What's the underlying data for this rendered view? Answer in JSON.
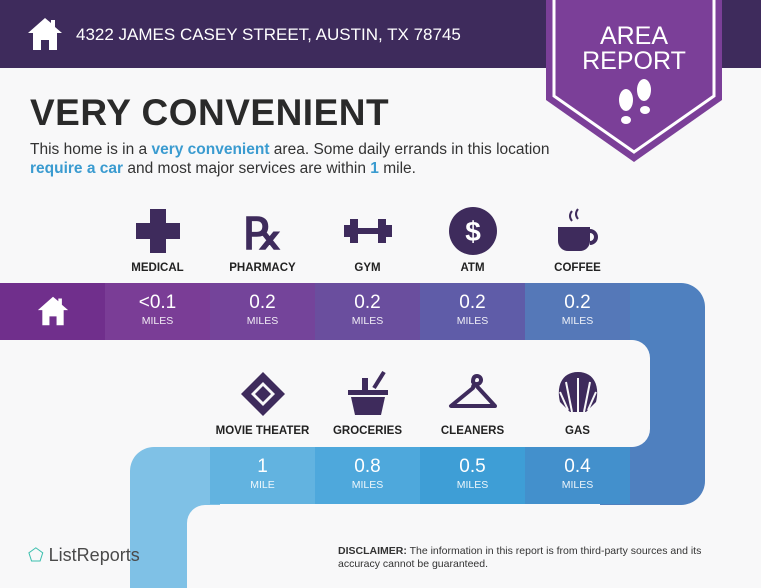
{
  "header": {
    "address": "4322 JAMES CASEY STREET, AUSTIN, TX 78745",
    "home_icon": "home-icon"
  },
  "badge": {
    "line1": "AREA",
    "line2": "REPORT",
    "icon": "footprints-icon"
  },
  "title": "VERY CONVENIENT",
  "description": {
    "p1": "This home is in a ",
    "h1": "very convenient",
    "p2": " area. Some daily errands in this location ",
    "h2": "require a car",
    "p3": " and most major services are within ",
    "h3": "1",
    "p4": " mile."
  },
  "row1": [
    {
      "label": "MEDICAL",
      "value": "<0.1",
      "unit": "MILES",
      "icon": "medical-cross-icon"
    },
    {
      "label": "PHARMACY",
      "value": "0.2",
      "unit": "MILES",
      "icon": "rx-icon"
    },
    {
      "label": "GYM",
      "value": "0.2",
      "unit": "MILES",
      "icon": "dumbbell-icon"
    },
    {
      "label": "ATM",
      "value": "0.2",
      "unit": "MILES",
      "icon": "dollar-icon"
    },
    {
      "label": "COFFEE",
      "value": "0.2",
      "unit": "MILES",
      "icon": "coffee-cup-icon"
    }
  ],
  "row2": [
    {
      "label": "MOVIE THEATER",
      "value": "1",
      "unit": "MILE",
      "icon": "ticket-icon"
    },
    {
      "label": "GROCERIES",
      "value": "0.8",
      "unit": "MILES",
      "icon": "basket-icon"
    },
    {
      "label": "CLEANERS",
      "value": "0.5",
      "unit": "MILES",
      "icon": "hanger-icon"
    },
    {
      "label": "GAS",
      "value": "0.4",
      "unit": "MILES",
      "icon": "shell-icon"
    }
  ],
  "colors": {
    "header": "#3e2b5c",
    "badge": "#7b3f98",
    "accent": "#3a9bd0",
    "icon": "#3e2b5c"
  },
  "footer": {
    "logo": "ListReports",
    "disclaimer_label": "DISCLAIMER:",
    "disclaimer": " The information in this report is from third-party sources and its accuracy cannot be guaranteed."
  }
}
